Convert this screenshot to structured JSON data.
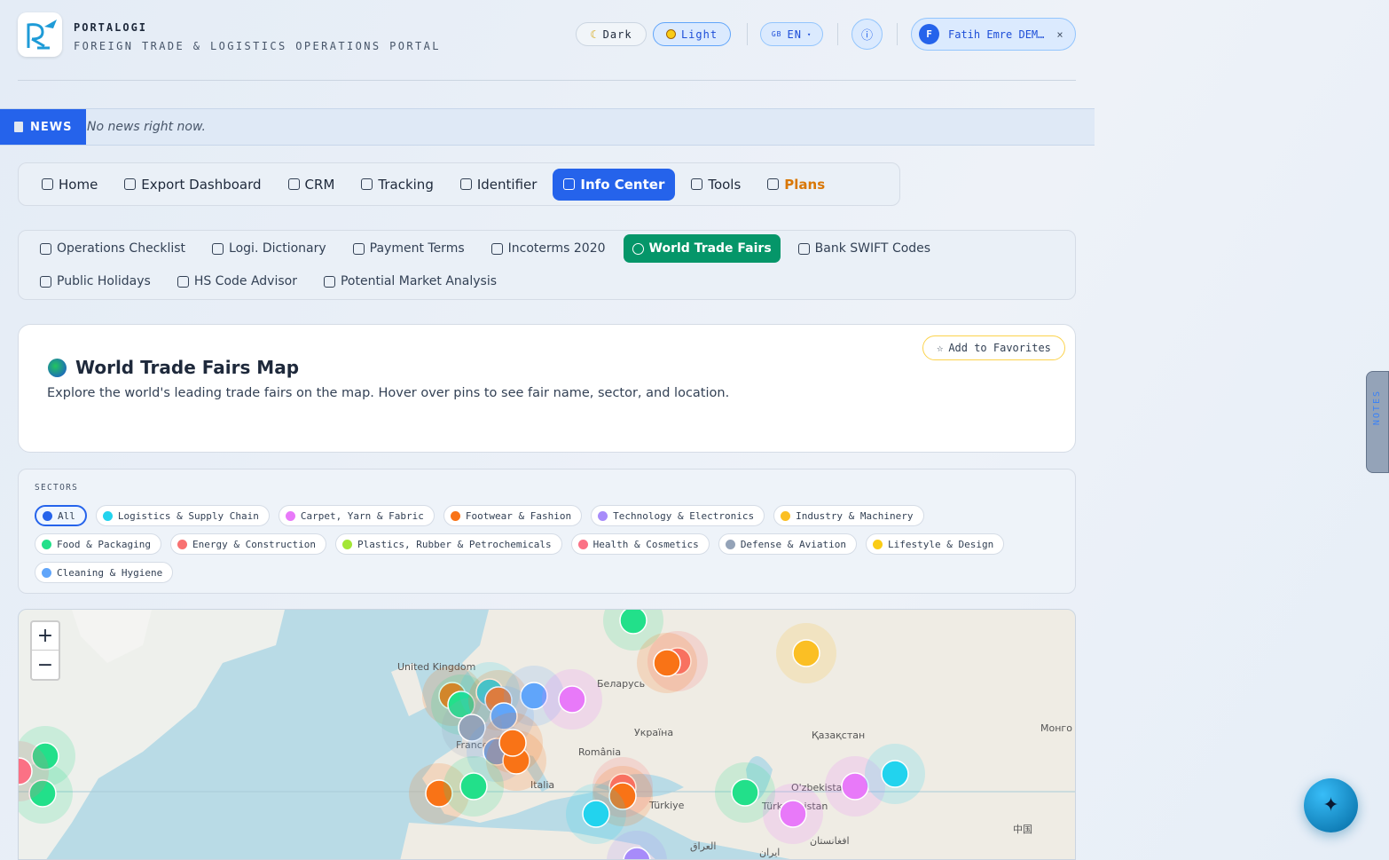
{
  "header": {
    "brand": "PORTALOGI",
    "subtitle": "FOREIGN TRADE & LOGISTICS OPERATIONS PORTAL",
    "theme_dark": "Dark",
    "theme_light": "Light",
    "lang_flag": "GB",
    "lang": "EN",
    "user_initial": "F",
    "user_name": "Fatih Emre DEM…",
    "close": "×"
  },
  "news": {
    "label": "NEWS",
    "text": "No news right now."
  },
  "main_nav": {
    "items": [
      "Home",
      "Export Dashboard",
      "CRM",
      "Tracking",
      "Identifier",
      "Info Center",
      "Tools",
      "Plans"
    ],
    "active": 5
  },
  "sub_nav": {
    "items": [
      "Operations Checklist",
      "Logi. Dictionary",
      "Payment Terms",
      "Incoterms 2020",
      "World Trade Fairs",
      "Bank SWIFT Codes",
      "Public Holidays",
      "HS Code Advisor",
      "Potential Market Analysis"
    ],
    "active": 4
  },
  "card": {
    "title": "World Trade Fairs Map",
    "description": "Explore the world's leading trade fairs on the map. Hover over pins to see fair name, sector, and location.",
    "favorite": "Add to Favorites"
  },
  "sectors": {
    "label": "SECTORS",
    "items": [
      {
        "name": "All",
        "color": "#2563eb"
      },
      {
        "name": "Logistics & Supply Chain",
        "color": "#22d3ee"
      },
      {
        "name": "Carpet, Yarn & Fabric",
        "color": "#e879f9"
      },
      {
        "name": "Footwear & Fashion",
        "color": "#f97316"
      },
      {
        "name": "Technology & Electronics",
        "color": "#a78bfa"
      },
      {
        "name": "Industry & Machinery",
        "color": "#fbbf24"
      },
      {
        "name": "Food & Packaging",
        "color": "#22e08a"
      },
      {
        "name": "Energy & Construction",
        "color": "#f87171"
      },
      {
        "name": "Plastics, Rubber & Petrochemicals",
        "color": "#a3e635"
      },
      {
        "name": "Health & Cosmetics",
        "color": "#fb7185"
      },
      {
        "name": "Defense & Aviation",
        "color": "#94a3b8"
      },
      {
        "name": "Lifestyle & Design",
        "color": "#facc15"
      },
      {
        "name": "Cleaning & Hygiene",
        "color": "#60a5fa"
      }
    ]
  },
  "map": {
    "zoom_in": "+",
    "zoom_out": "−",
    "labels": [
      "United Kingdom",
      "Беларусь",
      "Україна",
      "Қазақстан",
      "Монго",
      "România",
      "France",
      "Italia",
      "Türkiye",
      "O'zbekistan",
      "Türkmenistan",
      "العراق",
      "ایران",
      "افغانستان",
      "中国"
    ]
  },
  "notes_tab": "NOTES"
}
